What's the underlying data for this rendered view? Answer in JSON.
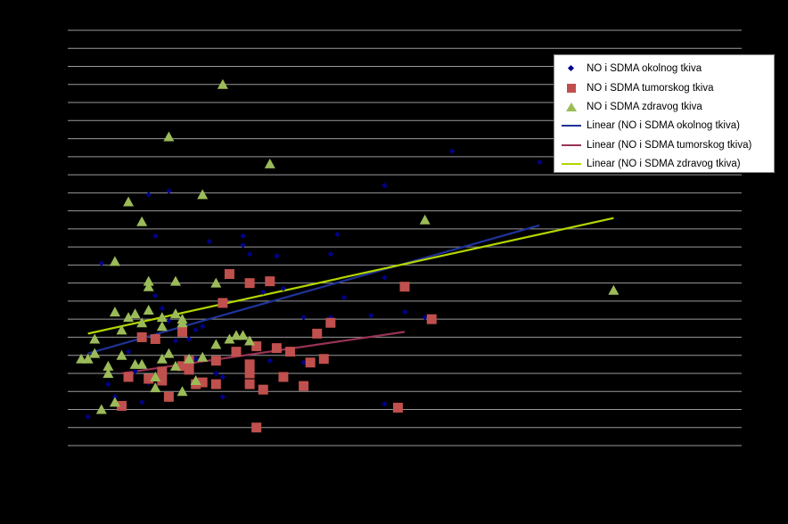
{
  "chart_data": {
    "type": "scatter",
    "title": "",
    "xlabel": "",
    "ylabel": "",
    "xlim": [
      0,
      100
    ],
    "ylim": [
      0,
      23
    ],
    "grid": true,
    "legend_position": "top-right",
    "series": [
      {
        "name": "NO i SDMA okolnog tkiva",
        "marker": "diamond",
        "color": "#00008b",
        "points": [
          [
            3,
            1.6
          ],
          [
            5,
            10.1
          ],
          [
            6,
            3.4
          ],
          [
            7,
            2.7
          ],
          [
            9,
            5.2
          ],
          [
            10,
            4.1
          ],
          [
            11,
            2.4
          ],
          [
            12,
            3.5
          ],
          [
            12,
            13.9
          ],
          [
            13,
            8.3
          ],
          [
            13,
            11.6
          ],
          [
            14,
            7.6
          ],
          [
            15,
            6.9
          ],
          [
            15,
            14.1
          ],
          [
            16,
            5.8
          ],
          [
            18,
            5.9
          ],
          [
            19,
            6.4
          ],
          [
            19,
            4.8
          ],
          [
            20,
            3.4
          ],
          [
            20,
            6.6
          ],
          [
            21,
            11.3
          ],
          [
            22,
            5.5
          ],
          [
            22,
            4.0
          ],
          [
            23,
            3.8
          ],
          [
            23,
            2.7
          ],
          [
            24,
            5.8
          ],
          [
            25,
            5.1
          ],
          [
            26,
            11.1
          ],
          [
            26,
            11.6
          ],
          [
            27,
            10.6
          ],
          [
            29,
            8.5
          ],
          [
            31,
            10.5
          ],
          [
            30,
            4.7
          ],
          [
            32,
            8.7
          ],
          [
            35,
            4.6
          ],
          [
            35,
            7.1
          ],
          [
            39,
            10.6
          ],
          [
            39,
            7.1
          ],
          [
            40,
            11.7
          ],
          [
            41,
            8.2
          ],
          [
            45,
            7.2
          ],
          [
            47,
            9.3
          ],
          [
            47,
            2.3
          ],
          [
            47,
            14.4
          ],
          [
            50,
            7.4
          ],
          [
            53,
            7.1
          ],
          [
            57,
            16.3
          ],
          [
            70,
            15.7
          ]
        ]
      },
      {
        "name": "NO i SDMA tumorskog tkiva",
        "marker": "square",
        "color": "#c0504d",
        "points": [
          [
            8,
            2.2
          ],
          [
            9,
            3.8
          ],
          [
            11,
            6.0
          ],
          [
            12,
            3.7
          ],
          [
            13,
            5.9
          ],
          [
            14,
            3.6
          ],
          [
            14,
            4.1
          ],
          [
            15,
            2.7
          ],
          [
            17,
            4.4
          ],
          [
            18,
            4.2
          ],
          [
            17,
            6.3
          ],
          [
            18,
            4.7
          ],
          [
            19,
            3.4
          ],
          [
            20,
            3.5
          ],
          [
            22,
            4.7
          ],
          [
            22,
            3.4
          ],
          [
            23,
            7.9
          ],
          [
            24,
            9.5
          ],
          [
            25,
            5.2
          ],
          [
            27,
            4.5
          ],
          [
            28,
            5.5
          ],
          [
            27,
            4.0
          ],
          [
            27,
            3.4
          ],
          [
            27,
            9.0
          ],
          [
            28,
            1.0
          ],
          [
            29,
            3.1
          ],
          [
            30,
            9.1
          ],
          [
            31,
            5.4
          ],
          [
            32,
            3.8
          ],
          [
            33,
            5.2
          ],
          [
            35,
            3.3
          ],
          [
            36,
            4.6
          ],
          [
            37,
            6.2
          ],
          [
            38,
            4.8
          ],
          [
            39,
            6.8
          ],
          [
            49,
            2.1
          ],
          [
            50,
            8.8
          ],
          [
            54,
            7.0
          ]
        ]
      },
      {
        "name": "NO i SDMA zdravog tkiva",
        "marker": "triangle",
        "color": "#9bbb59",
        "points": [
          [
            2,
            4.8
          ],
          [
            3,
            4.8
          ],
          [
            4,
            5.9
          ],
          [
            4,
            5.1
          ],
          [
            5,
            2.0
          ],
          [
            6,
            4.4
          ],
          [
            6,
            4.0
          ],
          [
            7,
            2.4
          ],
          [
            7,
            10.2
          ],
          [
            7,
            7.4
          ],
          [
            8,
            5.0
          ],
          [
            8,
            6.4
          ],
          [
            9,
            7.1
          ],
          [
            10,
            4.5
          ],
          [
            9,
            13.5
          ],
          [
            10,
            7.3
          ],
          [
            11,
            4.5
          ],
          [
            11,
            12.4
          ],
          [
            11,
            6.8
          ],
          [
            12,
            9.1
          ],
          [
            12,
            8.8
          ],
          [
            12,
            7.5
          ],
          [
            13,
            3.8
          ],
          [
            13,
            3.2
          ],
          [
            14,
            7.1
          ],
          [
            14,
            4.8
          ],
          [
            14,
            6.6
          ],
          [
            15,
            17.1
          ],
          [
            15,
            5.1
          ],
          [
            16,
            4.4
          ],
          [
            16,
            9.1
          ],
          [
            16,
            7.3
          ],
          [
            17,
            3.0
          ],
          [
            17,
            7.0
          ],
          [
            17,
            6.8
          ],
          [
            18,
            4.8
          ],
          [
            19,
            3.6
          ],
          [
            20,
            4.9
          ],
          [
            20,
            13.9
          ],
          [
            22,
            9.0
          ],
          [
            22,
            5.6
          ],
          [
            23,
            20.0
          ],
          [
            24,
            5.9
          ],
          [
            25,
            6.1
          ],
          [
            26,
            6.1
          ],
          [
            27,
            5.8
          ],
          [
            30,
            15.6
          ],
          [
            53,
            12.5
          ],
          [
            81,
            8.6
          ]
        ]
      }
    ],
    "trendlines": [
      {
        "name": "Linear (NO i SDMA okolnog tkiva)",
        "color": "#1f3399",
        "from": [
          3,
          5.1
        ],
        "to": [
          70,
          12.2
        ]
      },
      {
        "name": "Linear (NO i SDMA tumorskog tkiva)",
        "color": "#993355",
        "from": [
          8,
          4.0
        ],
        "to": [
          50,
          6.3
        ]
      },
      {
        "name": "Linear (NO i SDMA zdravog tkiva)",
        "color": "#b3d600",
        "from": [
          3,
          6.2
        ],
        "to": [
          81,
          12.6
        ]
      }
    ]
  }
}
